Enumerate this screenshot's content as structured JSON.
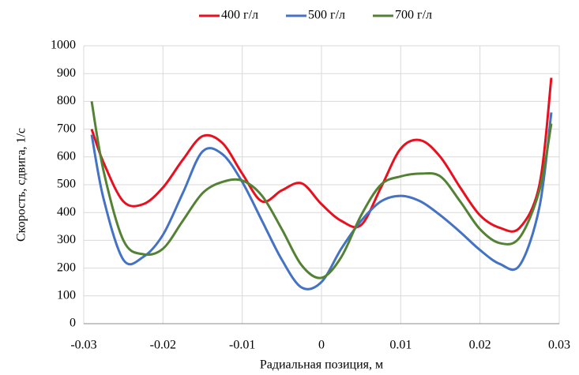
{
  "chart_data": {
    "type": "line",
    "x_label": "Радиальная позиция, м",
    "y_label": "Скорость, сдвига, 1/с",
    "x": [
      -0.029,
      -0.0275,
      -0.025,
      -0.0225,
      -0.02,
      -0.0175,
      -0.015,
      -0.0125,
      -0.01,
      -0.0075,
      -0.005,
      -0.0025,
      0,
      0.0025,
      0.005,
      0.0075,
      0.01,
      0.0125,
      0.015,
      0.0175,
      0.02,
      0.0225,
      0.025,
      0.0275,
      0.029
    ],
    "series": [
      {
        "name": "400 г/л",
        "color": "#e8101e",
        "values": [
          700,
          580,
          440,
          430,
          490,
          590,
          675,
          650,
          540,
          440,
          480,
          505,
          430,
          370,
          355,
          490,
          630,
          660,
          600,
          490,
          390,
          345,
          345,
          500,
          885
        ]
      },
      {
        "name": "500 г/л",
        "color": "#4472c4",
        "values": [
          680,
          450,
          230,
          240,
          320,
          470,
          620,
          610,
          510,
          370,
          230,
          130,
          150,
          270,
          370,
          440,
          460,
          440,
          390,
          330,
          265,
          215,
          210,
          420,
          760
        ]
      },
      {
        "name": "700 г/л",
        "color": "#548235",
        "values": [
          800,
          550,
          300,
          250,
          270,
          370,
          470,
          510,
          515,
          460,
          340,
          210,
          165,
          240,
          390,
          500,
          530,
          540,
          530,
          440,
          340,
          290,
          310,
          480,
          720
        ]
      }
    ],
    "xlim": [
      -0.03,
      0.03
    ],
    "xticks": [
      -0.03,
      -0.02,
      -0.01,
      0,
      0.01,
      0.02,
      0.03
    ],
    "ylim": [
      0,
      1000
    ],
    "yticks": [
      0,
      100,
      200,
      300,
      400,
      500,
      600,
      700,
      800,
      900,
      1000
    ],
    "grid": true,
    "legend": "top"
  }
}
